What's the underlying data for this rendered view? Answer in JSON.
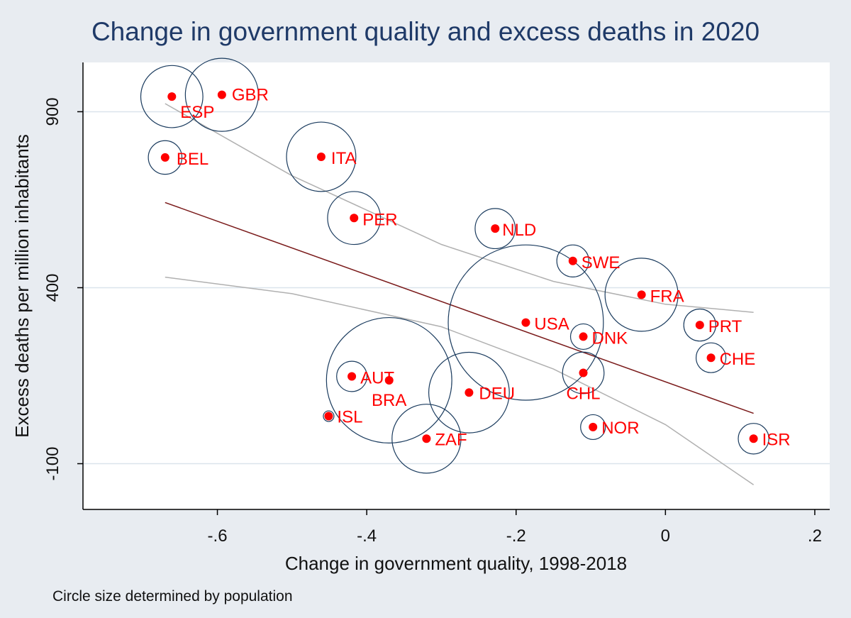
{
  "chart_data": {
    "type": "scatter",
    "title": "Change in government quality and excess deaths in 2020",
    "xlabel": "Change in government quality, 1998-2018",
    "ylabel": "Excess deaths per million inhabitants",
    "note": "Circle size determined by population",
    "xlim": [
      -0.78,
      0.22
    ],
    "ylim": [
      -230,
      1040
    ],
    "xticks": [
      -0.6,
      -0.4,
      -0.2,
      0,
      0.2
    ],
    "xtick_labels": [
      "-.6",
      "-.4",
      "-.2",
      "0",
      ".2"
    ],
    "yticks": [
      900,
      400,
      -100
    ],
    "ytick_labels": [
      "900",
      "400",
      "-100"
    ],
    "grid": "horizontal",
    "points": [
      {
        "label": "ESP",
        "x": -0.661,
        "y": 943,
        "population": 47
      },
      {
        "label": "GBR",
        "x": -0.594,
        "y": 948,
        "population": 67
      },
      {
        "label": "BEL",
        "x": -0.67,
        "y": 770,
        "population": 11.5
      },
      {
        "label": "ITA",
        "x": -0.461,
        "y": 772,
        "population": 60
      },
      {
        "label": "PER",
        "x": -0.417,
        "y": 598,
        "population": 33
      },
      {
        "label": "NLD",
        "x": -0.228,
        "y": 568,
        "population": 17.5
      },
      {
        "label": "SWE",
        "x": -0.124,
        "y": 476,
        "population": 10.3
      },
      {
        "label": "FRA",
        "x": -0.032,
        "y": 380,
        "population": 67
      },
      {
        "label": "USA",
        "x": -0.187,
        "y": 301,
        "population": 330
      },
      {
        "label": "PRT",
        "x": 0.046,
        "y": 294,
        "population": 10.3
      },
      {
        "label": "DNK",
        "x": -0.11,
        "y": 261,
        "population": 5.8
      },
      {
        "label": "CHE",
        "x": 0.061,
        "y": 201,
        "population": 8.6
      },
      {
        "label": "AUT",
        "x": -0.42,
        "y": 148,
        "population": 9
      },
      {
        "label": "BRA",
        "x": -0.37,
        "y": 137,
        "population": 212
      },
      {
        "label": "CHL",
        "x": -0.11,
        "y": 158,
        "population": 19
      },
      {
        "label": "DEU",
        "x": -0.263,
        "y": 102,
        "population": 83
      },
      {
        "label": "ISL",
        "x": -0.451,
        "y": 35,
        "population": 0.36
      },
      {
        "label": "NOR",
        "x": -0.097,
        "y": 4,
        "population": 5.4
      },
      {
        "label": "ZAF",
        "x": -0.32,
        "y": -29,
        "population": 59
      },
      {
        "label": "ISR",
        "x": 0.118,
        "y": -29,
        "population": 9.2
      }
    ],
    "fit_line": {
      "x": [
        -0.67,
        0.118
      ],
      "y": [
        642,
        43
      ]
    },
    "ci_upper": {
      "x": [
        -0.67,
        -0.5,
        -0.3,
        -0.15,
        0,
        0.118
      ],
      "y": [
        923,
        718,
        523,
        418,
        353,
        330
      ]
    },
    "ci_lower": {
      "x": [
        -0.67,
        -0.5,
        -0.3,
        -0.15,
        0,
        0.118
      ],
      "y": [
        430,
        383,
        289,
        169,
        11,
        -160
      ]
    },
    "colors": {
      "background": "#e8ecf1",
      "plot_area": "#ffffff",
      "point": "#ff0000",
      "label": "#ff0000",
      "bubble": "#1a3b5e",
      "fit": "#7a1a1a",
      "ci": "#b0b0b0",
      "grid": "#dbe4ec"
    }
  }
}
